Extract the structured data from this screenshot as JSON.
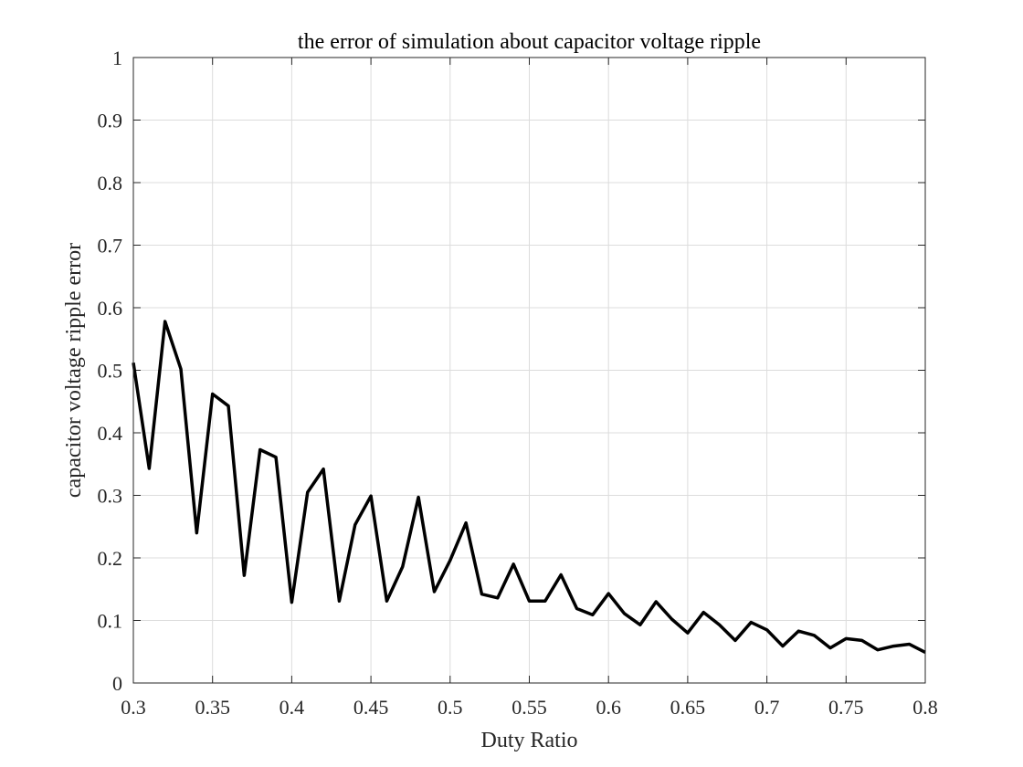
{
  "chart_data": {
    "type": "line",
    "title": "the error of simulation about capacitor voltage ripple",
    "xlabel": "Duty Ratio",
    "ylabel": "capacitor voltage ripple error",
    "xlim": [
      0.3,
      0.8
    ],
    "ylim": [
      0,
      1
    ],
    "xticks": [
      "0.3",
      "0.35",
      "0.4",
      "0.45",
      "0.5",
      "0.55",
      "0.6",
      "0.65",
      "0.7",
      "0.75",
      "0.8"
    ],
    "yticks": [
      "0",
      "0.1",
      "0.2",
      "0.3",
      "0.4",
      "0.5",
      "0.6",
      "0.7",
      "0.8",
      "0.9",
      "1"
    ],
    "grid": true,
    "series": [
      {
        "color": "#000000",
        "x": [
          0.3,
          0.31,
          0.32,
          0.33,
          0.34,
          0.35,
          0.36,
          0.37,
          0.38,
          0.39,
          0.4,
          0.41,
          0.42,
          0.43,
          0.44,
          0.45,
          0.46,
          0.47,
          0.48,
          0.49,
          0.5,
          0.51,
          0.52,
          0.53,
          0.54,
          0.55,
          0.56,
          0.57,
          0.58,
          0.59,
          0.6,
          0.61,
          0.62,
          0.63,
          0.64,
          0.65,
          0.66,
          0.67,
          0.68,
          0.69,
          0.7,
          0.71,
          0.72,
          0.73,
          0.74,
          0.75,
          0.76,
          0.77,
          0.78,
          0.79,
          0.8
        ],
        "y": [
          0.512,
          0.343,
          0.578,
          0.502,
          0.24,
          0.462,
          0.443,
          0.172,
          0.373,
          0.361,
          0.129,
          0.305,
          0.342,
          0.131,
          0.253,
          0.299,
          0.131,
          0.186,
          0.297,
          0.146,
          0.196,
          0.256,
          0.142,
          0.136,
          0.19,
          0.131,
          0.131,
          0.173,
          0.119,
          0.109,
          0.143,
          0.111,
          0.093,
          0.13,
          0.102,
          0.08,
          0.113,
          0.093,
          0.068,
          0.097,
          0.085,
          0.059,
          0.083,
          0.076,
          0.056,
          0.071,
          0.068,
          0.053,
          0.059,
          0.062,
          0.049
        ]
      }
    ]
  }
}
